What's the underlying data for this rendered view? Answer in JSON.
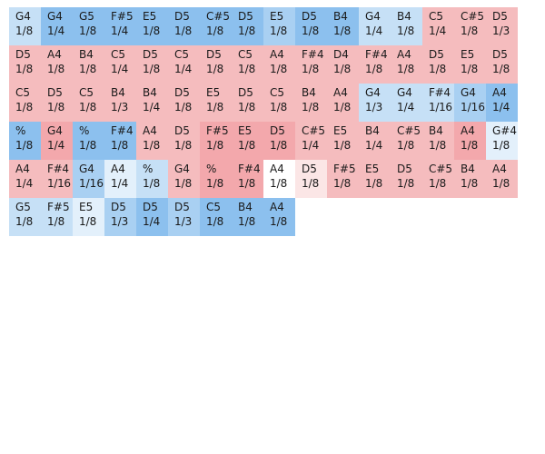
{
  "palette": {
    "blue_strong": "#8cc0ee",
    "blue_mid": "#a9d0f2",
    "blue_light": "#c6e0f6",
    "blue_pale": "#e3f0fb",
    "red_strong": "#f3a8ac",
    "red_mid": "#f5bcbe",
    "red_light": "#f8d3d4",
    "red_pale": "#fbe6e6",
    "neutral": "#ffffff"
  },
  "rows": [
    [
      {
        "pitch": "G4",
        "duration": "1/8",
        "tone": "blue_light"
      },
      {
        "pitch": "G4",
        "duration": "1/4",
        "tone": "blue_strong"
      },
      {
        "pitch": "G5",
        "duration": "1/8",
        "tone": "blue_strong"
      },
      {
        "pitch": "F#5",
        "duration": "1/4",
        "tone": "blue_strong"
      },
      {
        "pitch": "E5",
        "duration": "1/8",
        "tone": "blue_strong"
      },
      {
        "pitch": "D5",
        "duration": "1/8",
        "tone": "blue_strong"
      },
      {
        "pitch": "C#5",
        "duration": "1/8",
        "tone": "blue_strong"
      },
      {
        "pitch": "D5",
        "duration": "1/8",
        "tone": "blue_strong"
      },
      {
        "pitch": "E5",
        "duration": "1/8",
        "tone": "blue_mid"
      },
      {
        "pitch": "D5",
        "duration": "1/8",
        "tone": "blue_strong"
      },
      {
        "pitch": "B4",
        "duration": "1/8",
        "tone": "blue_strong"
      },
      {
        "pitch": "G4",
        "duration": "1/4",
        "tone": "blue_light"
      },
      {
        "pitch": "B4",
        "duration": "1/8",
        "tone": "blue_light"
      },
      {
        "pitch": "C5",
        "duration": "1/4",
        "tone": "red_mid"
      },
      {
        "pitch": "C#5",
        "duration": "1/8",
        "tone": "red_mid"
      },
      {
        "pitch": "D5",
        "duration": "1/3",
        "tone": "red_mid"
      }
    ],
    [
      {
        "pitch": "D5",
        "duration": "1/8",
        "tone": "red_mid"
      },
      {
        "pitch": "A4",
        "duration": "1/8",
        "tone": "red_mid"
      },
      {
        "pitch": "B4",
        "duration": "1/8",
        "tone": "red_mid"
      },
      {
        "pitch": "C5",
        "duration": "1/4",
        "tone": "red_mid"
      },
      {
        "pitch": "D5",
        "duration": "1/8",
        "tone": "red_mid"
      },
      {
        "pitch": "C5",
        "duration": "1/4",
        "tone": "red_mid"
      },
      {
        "pitch": "D5",
        "duration": "1/8",
        "tone": "red_mid"
      },
      {
        "pitch": "C5",
        "duration": "1/8",
        "tone": "red_mid"
      },
      {
        "pitch": "A4",
        "duration": "1/8",
        "tone": "red_mid"
      },
      {
        "pitch": "F#4",
        "duration": "1/8",
        "tone": "red_mid"
      },
      {
        "pitch": "D4",
        "duration": "1/8",
        "tone": "red_mid"
      },
      {
        "pitch": "F#4",
        "duration": "1/8",
        "tone": "red_mid"
      },
      {
        "pitch": "A4",
        "duration": "1/8",
        "tone": "red_mid"
      },
      {
        "pitch": "D5",
        "duration": "1/8",
        "tone": "red_mid"
      },
      {
        "pitch": "E5",
        "duration": "1/8",
        "tone": "red_mid"
      },
      {
        "pitch": "D5",
        "duration": "1/8",
        "tone": "red_mid"
      }
    ],
    [
      {
        "pitch": "C5",
        "duration": "1/8",
        "tone": "red_mid"
      },
      {
        "pitch": "D5",
        "duration": "1/8",
        "tone": "red_mid"
      },
      {
        "pitch": "C5",
        "duration": "1/8",
        "tone": "red_mid"
      },
      {
        "pitch": "B4",
        "duration": "1/3",
        "tone": "red_mid"
      },
      {
        "pitch": "B4",
        "duration": "1/4",
        "tone": "red_mid"
      },
      {
        "pitch": "D5",
        "duration": "1/8",
        "tone": "red_mid"
      },
      {
        "pitch": "E5",
        "duration": "1/8",
        "tone": "red_mid"
      },
      {
        "pitch": "D5",
        "duration": "1/8",
        "tone": "red_mid"
      },
      {
        "pitch": "C5",
        "duration": "1/8",
        "tone": "red_mid"
      },
      {
        "pitch": "B4",
        "duration": "1/8",
        "tone": "red_mid"
      },
      {
        "pitch": "A4",
        "duration": "1/8",
        "tone": "red_mid"
      },
      {
        "pitch": "G4",
        "duration": "1/3",
        "tone": "blue_light"
      },
      {
        "pitch": "G4",
        "duration": "1/4",
        "tone": "blue_light"
      },
      {
        "pitch": "F#4",
        "duration": "1/16",
        "tone": "blue_light"
      },
      {
        "pitch": "G4",
        "duration": "1/16",
        "tone": "blue_mid"
      },
      {
        "pitch": "A4",
        "duration": "1/4",
        "tone": "blue_strong"
      }
    ],
    [
      {
        "pitch": "%",
        "duration": "1/8",
        "tone": "blue_strong"
      },
      {
        "pitch": "G4",
        "duration": "1/4",
        "tone": "red_strong"
      },
      {
        "pitch": "%",
        "duration": "1/8",
        "tone": "blue_strong"
      },
      {
        "pitch": "F#4",
        "duration": "1/8",
        "tone": "blue_strong"
      },
      {
        "pitch": "A4",
        "duration": "1/8",
        "tone": "red_mid"
      },
      {
        "pitch": "D5",
        "duration": "1/8",
        "tone": "red_mid"
      },
      {
        "pitch": "F#5",
        "duration": "1/8",
        "tone": "red_strong"
      },
      {
        "pitch": "E5",
        "duration": "1/8",
        "tone": "red_strong"
      },
      {
        "pitch": "D5",
        "duration": "1/8",
        "tone": "red_strong"
      },
      {
        "pitch": "C#5",
        "duration": "1/4",
        "tone": "red_mid"
      },
      {
        "pitch": "E5",
        "duration": "1/8",
        "tone": "red_mid"
      },
      {
        "pitch": "B4",
        "duration": "1/4",
        "tone": "red_mid"
      },
      {
        "pitch": "C#5",
        "duration": "1/8",
        "tone": "red_mid"
      },
      {
        "pitch": "B4",
        "duration": "1/8",
        "tone": "red_mid"
      },
      {
        "pitch": "A4",
        "duration": "1/8",
        "tone": "red_strong"
      },
      {
        "pitch": "G#4",
        "duration": "1/8",
        "tone": "blue_pale"
      }
    ],
    [
      {
        "pitch": "A4",
        "duration": "1/4",
        "tone": "red_mid"
      },
      {
        "pitch": "F#4",
        "duration": "1/16",
        "tone": "red_mid"
      },
      {
        "pitch": "G4",
        "duration": "1/16",
        "tone": "blue_mid"
      },
      {
        "pitch": "A4",
        "duration": "1/4",
        "tone": "blue_pale"
      },
      {
        "pitch": "%",
        "duration": "1/8",
        "tone": "blue_light"
      },
      {
        "pitch": "G4",
        "duration": "1/8",
        "tone": "red_mid"
      },
      {
        "pitch": "%",
        "duration": "1/8",
        "tone": "red_strong"
      },
      {
        "pitch": "F#4",
        "duration": "1/8",
        "tone": "red_strong"
      },
      {
        "pitch": "A4",
        "duration": "1/8",
        "tone": "neutral"
      },
      {
        "pitch": "D5",
        "duration": "1/8",
        "tone": "red_pale"
      },
      {
        "pitch": "F#5",
        "duration": "1/8",
        "tone": "red_mid"
      },
      {
        "pitch": "E5",
        "duration": "1/8",
        "tone": "red_mid"
      },
      {
        "pitch": "D5",
        "duration": "1/8",
        "tone": "red_mid"
      },
      {
        "pitch": "C#5",
        "duration": "1/8",
        "tone": "red_mid"
      },
      {
        "pitch": "B4",
        "duration": "1/8",
        "tone": "red_mid"
      },
      {
        "pitch": "A4",
        "duration": "1/8",
        "tone": "red_mid"
      }
    ],
    [
      {
        "pitch": "G5",
        "duration": "1/8",
        "tone": "blue_light"
      },
      {
        "pitch": "F#5",
        "duration": "1/8",
        "tone": "blue_light"
      },
      {
        "pitch": "E5",
        "duration": "1/8",
        "tone": "blue_pale"
      },
      {
        "pitch": "D5",
        "duration": "1/3",
        "tone": "blue_mid"
      },
      {
        "pitch": "D5",
        "duration": "1/4",
        "tone": "blue_strong"
      },
      {
        "pitch": "D5",
        "duration": "1/3",
        "tone": "blue_mid"
      },
      {
        "pitch": "C5",
        "duration": "1/8",
        "tone": "blue_strong"
      },
      {
        "pitch": "B4",
        "duration": "1/8",
        "tone": "blue_strong"
      },
      {
        "pitch": "A4",
        "duration": "1/8",
        "tone": "blue_strong"
      }
    ]
  ]
}
